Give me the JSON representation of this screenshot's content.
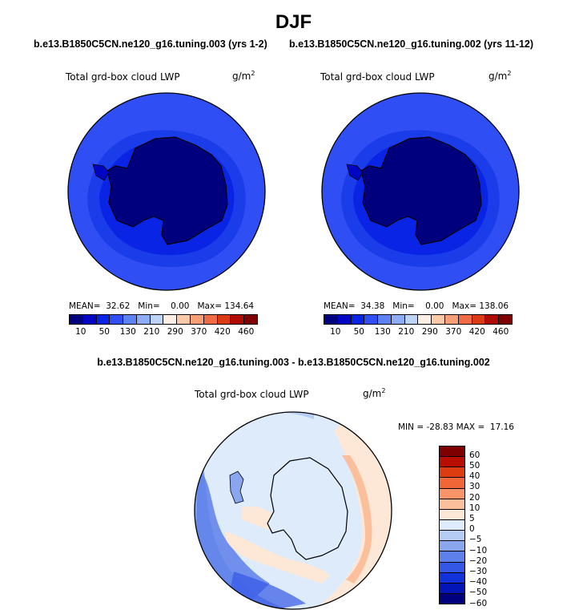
{
  "title": "DJF",
  "panels": {
    "left": {
      "case": "b.e13.B1850C5CN.ne120_g16.tuning.003 (yrs 1-2)",
      "variable": "Total grd-box cloud LWP",
      "units_base": "g/m",
      "units_exp": "2",
      "mean_label": "MEAN=",
      "mean": "32.62",
      "min_label": "Min=",
      "min": "0.00",
      "max_label": "Max=",
      "max": "134.64"
    },
    "right": {
      "case": "b.e13.B1850C5CN.ne120_g16.tuning.002 (yrs 11-12)",
      "variable": "Total grd-box cloud LWP",
      "units_base": "g/m",
      "units_exp": "2",
      "mean_label": "MEAN=",
      "mean": "34.38",
      "min_label": "Min=",
      "min": "0.00",
      "max_label": "Max=",
      "max": "138.06"
    },
    "diff": {
      "case": "b.e13.B1850C5CN.ne120_g16.tuning.003 - b.e13.B1850C5CN.ne120_g16.tuning.002",
      "variable": "Total grd-box cloud LWP",
      "units_base": "g/m",
      "units_exp": "2",
      "minmax": "MIN = -28.83 MAX =  17.16"
    }
  },
  "colorbar_abs": {
    "colors": [
      "#00007f",
      "#0005c3",
      "#0a24e6",
      "#2f4ff4",
      "#5c82f6",
      "#8cadf5",
      "#bcd3f6",
      "#fdeee3",
      "#fdcaa8",
      "#f99f77",
      "#f06a45",
      "#db3a14",
      "#b00a04",
      "#7f0000"
    ],
    "labels": [
      "10",
      "50",
      "130",
      "210",
      "290",
      "370",
      "420",
      "460"
    ]
  },
  "colorbar_diff": {
    "colors": [
      "#7f0000",
      "#b80d00",
      "#dd3b10",
      "#f06636",
      "#f89468",
      "#fcbf9c",
      "#fde8d7",
      "#ddebfb",
      "#b5ccf4",
      "#8aa6ef",
      "#5e80ea",
      "#3457e6",
      "#1233d9",
      "#0415b8",
      "#00007f"
    ],
    "labels": [
      "60",
      "50",
      "40",
      "30",
      "20",
      "10",
      "5",
      "0",
      "−5",
      "−10",
      "−20",
      "−30",
      "−40",
      "−50",
      "−60"
    ]
  }
}
